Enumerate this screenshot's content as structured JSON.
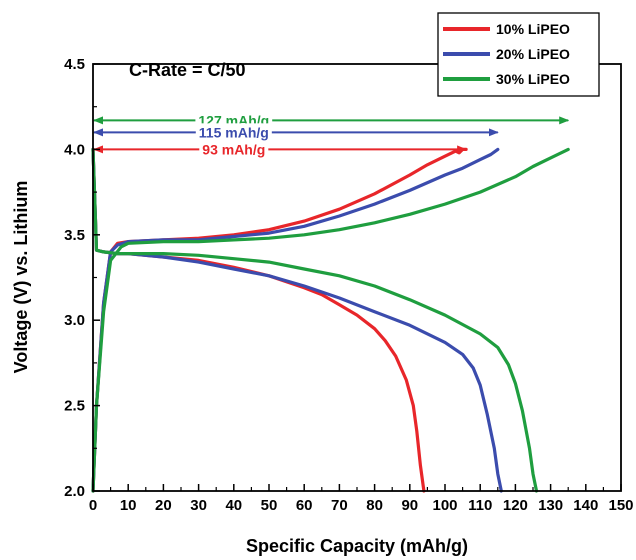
{
  "chart_data": {
    "type": "line",
    "title": "C-Rate = C/50",
    "xlabel": "Specific Capacity (mAh/g)",
    "ylabel": "Voltage (V) vs. Lithium",
    "xlim": [
      0,
      150
    ],
    "ylim": [
      2.0,
      4.5
    ],
    "x_ticks": [
      0,
      10,
      20,
      30,
      40,
      50,
      60,
      70,
      80,
      90,
      100,
      110,
      120,
      130,
      140,
      150
    ],
    "y_ticks": [
      2.0,
      2.5,
      3.0,
      3.5,
      4.0,
      4.5
    ],
    "grid": false,
    "legend_position": "top-right",
    "series": [
      {
        "name": "10% LiPEO",
        "color": "#e8262a",
        "charge": {
          "x": [
            0,
            1,
            3,
            5,
            7,
            10,
            20,
            30,
            40,
            50,
            60,
            70,
            80,
            90,
            95,
            100,
            103,
            104,
            105,
            106
          ],
          "y": [
            2.0,
            2.5,
            3.1,
            3.4,
            3.45,
            3.46,
            3.47,
            3.48,
            3.5,
            3.53,
            3.58,
            3.65,
            3.74,
            3.85,
            3.91,
            3.96,
            3.99,
            3.98,
            4.0,
            4.0
          ]
        },
        "discharge": {
          "x": [
            0,
            0.5,
            1,
            3,
            7,
            10,
            20,
            30,
            40,
            50,
            60,
            65,
            70,
            75,
            80,
            83,
            86,
            89,
            91,
            92,
            93,
            94
          ],
          "y": [
            4.0,
            3.7,
            3.41,
            3.4,
            3.39,
            3.39,
            3.37,
            3.35,
            3.31,
            3.26,
            3.19,
            3.15,
            3.09,
            3.03,
            2.95,
            2.88,
            2.79,
            2.65,
            2.5,
            2.35,
            2.15,
            2.0
          ]
        }
      },
      {
        "name": "20% LiPEO",
        "color": "#3b4cad",
        "charge": {
          "x": [
            0,
            1,
            3,
            5,
            7,
            10,
            20,
            30,
            40,
            50,
            60,
            70,
            80,
            90,
            100,
            105,
            110,
            113,
            115
          ],
          "y": [
            2.0,
            2.5,
            3.1,
            3.4,
            3.44,
            3.46,
            3.47,
            3.47,
            3.49,
            3.51,
            3.55,
            3.61,
            3.68,
            3.76,
            3.85,
            3.89,
            3.94,
            3.97,
            4.0
          ]
        },
        "discharge": {
          "x": [
            0,
            0.5,
            1,
            3,
            7,
            10,
            20,
            30,
            40,
            50,
            60,
            70,
            80,
            90,
            100,
            105,
            108,
            110,
            112,
            114,
            115,
            116
          ],
          "y": [
            4.0,
            3.7,
            3.41,
            3.4,
            3.39,
            3.39,
            3.37,
            3.34,
            3.3,
            3.26,
            3.2,
            3.13,
            3.05,
            2.97,
            2.87,
            2.8,
            2.72,
            2.62,
            2.45,
            2.25,
            2.1,
            2.0
          ]
        }
      },
      {
        "name": "30% LiPEO",
        "color": "#1f9e3f",
        "charge": {
          "x": [
            0,
            1,
            3,
            5,
            8,
            10,
            20,
            30,
            40,
            50,
            60,
            70,
            80,
            90,
            100,
            110,
            120,
            125,
            130,
            133,
            135
          ],
          "y": [
            2.0,
            2.5,
            3.05,
            3.35,
            3.43,
            3.45,
            3.46,
            3.46,
            3.47,
            3.48,
            3.5,
            3.53,
            3.57,
            3.62,
            3.68,
            3.75,
            3.84,
            3.9,
            3.95,
            3.98,
            4.0
          ]
        },
        "discharge": {
          "x": [
            0,
            0.5,
            1,
            3,
            7,
            10,
            20,
            30,
            40,
            50,
            60,
            70,
            80,
            90,
            100,
            110,
            115,
            118,
            120,
            122,
            124,
            125,
            126
          ],
          "y": [
            4.0,
            3.7,
            3.41,
            3.4,
            3.39,
            3.39,
            3.39,
            3.38,
            3.36,
            3.34,
            3.3,
            3.26,
            3.2,
            3.12,
            3.03,
            2.92,
            2.84,
            2.74,
            2.63,
            2.47,
            2.25,
            2.1,
            2.0
          ]
        }
      }
    ],
    "annotations": [
      {
        "text": "127 mAh/g",
        "color": "#1f9e3f",
        "x_start": 0,
        "x_end": 135,
        "y": 4.17
      },
      {
        "text": "115 mAh/g",
        "color": "#3b4cad",
        "x_start": 0,
        "x_end": 115,
        "y": 4.1
      },
      {
        "text": "93 mAh/g",
        "color": "#e8262a",
        "x_start": 0,
        "x_end": 106,
        "y": 4.0
      }
    ]
  }
}
